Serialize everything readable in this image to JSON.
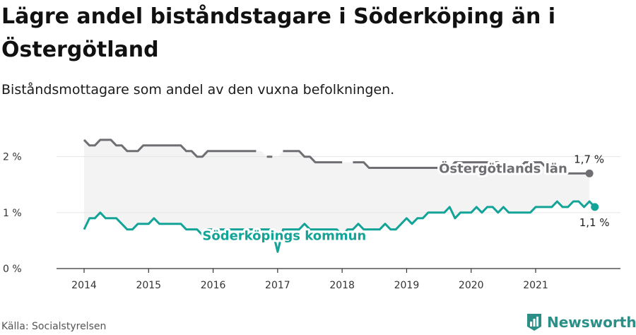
{
  "title": "Lägre andel biståndstagare i Söderköping än i Östergötland",
  "subtitle": "Biståndsmottagare som andel av den vuxna befolkningen.",
  "source": "Källa: Socialstyrelsen",
  "brand": {
    "name": "Newsworthy",
    "color": "#2b8f88"
  },
  "colors": {
    "county": "#6e6e73",
    "municipality": "#14a397",
    "band": "#f3f3f4",
    "axis": "#333333",
    "grid": "#e5e5e5"
  },
  "chart_data": {
    "type": "line",
    "ylim": [
      0,
      2.4
    ],
    "xlim": [
      2014,
      2021.92
    ],
    "y_ticks": [
      {
        "value": 0,
        "label": "0 %"
      },
      {
        "value": 1,
        "label": "1 %"
      },
      {
        "value": 2,
        "label": "2 %"
      }
    ],
    "x_ticks": [
      {
        "value": 2014,
        "label": "2014"
      },
      {
        "value": 2015,
        "label": "2015"
      },
      {
        "value": 2016,
        "label": "2016"
      },
      {
        "value": 2017,
        "label": "2017"
      },
      {
        "value": 2018,
        "label": "2018"
      },
      {
        "value": 2019,
        "label": "2019"
      },
      {
        "value": 2020,
        "label": "2020"
      },
      {
        "value": 2021,
        "label": "2021"
      }
    ],
    "start": "2014-01",
    "series": [
      {
        "key": "county",
        "name": "Östergötlands län",
        "end_label": "1,7 %",
        "values": [
          2.3,
          2.2,
          2.2,
          2.3,
          2.3,
          2.3,
          2.2,
          2.2,
          2.1,
          2.1,
          2.1,
          2.2,
          2.2,
          2.2,
          2.2,
          2.2,
          2.2,
          2.2,
          2.2,
          2.1,
          2.1,
          2.0,
          2.0,
          2.1,
          2.1,
          2.1,
          2.1,
          2.1,
          2.1,
          2.1,
          2.1,
          2.1,
          2.1,
          null,
          2.0,
          2.0,
          null,
          2.1,
          2.1,
          2.1,
          2.1,
          2.0,
          2.0,
          1.9,
          1.9,
          1.9,
          1.9,
          1.9,
          1.9,
          null,
          1.9,
          1.9,
          1.9,
          1.8,
          1.8,
          1.8,
          1.8,
          1.8,
          1.8,
          1.8,
          1.8,
          1.8,
          1.8,
          1.8,
          1.8,
          1.8,
          1.8,
          1.8,
          1.8,
          1.9,
          1.9,
          1.9,
          1.9,
          1.9,
          1.9,
          1.9,
          1.9,
          1.9,
          1.8,
          1.8,
          1.8,
          1.8,
          1.9,
          1.9,
          1.9,
          1.9,
          1.8,
          1.8,
          1.8,
          1.8,
          1.7,
          1.7,
          1.7,
          1.7,
          1.7
        ]
      },
      {
        "key": "municipality",
        "name": "Söderköpings kommun",
        "end_label": "1,1 %",
        "values": [
          0.7,
          0.9,
          0.9,
          1.0,
          0.9,
          0.9,
          0.9,
          0.8,
          0.7,
          0.7,
          0.8,
          0.8,
          0.8,
          0.9,
          0.8,
          0.8,
          0.8,
          0.8,
          0.8,
          0.7,
          0.7,
          0.7,
          0.6,
          0.7,
          0.7,
          0.7,
          0.7,
          0.7,
          0.7,
          0.7,
          0.7,
          0.7,
          0.7,
          0.7,
          0.7,
          0.7,
          0.3,
          0.7,
          0.7,
          0.7,
          0.7,
          0.8,
          0.7,
          0.7,
          0.7,
          0.7,
          0.7,
          0.7,
          0.6,
          0.7,
          0.7,
          0.8,
          0.7,
          0.7,
          0.7,
          0.7,
          0.8,
          0.7,
          0.7,
          0.8,
          0.9,
          0.8,
          0.9,
          0.9,
          1.0,
          1.0,
          1.0,
          1.0,
          1.1,
          0.9,
          1.0,
          1.0,
          1.0,
          1.1,
          1.0,
          1.1,
          1.1,
          1.0,
          1.1,
          1.0,
          1.0,
          1.0,
          1.0,
          1.0,
          1.1,
          1.1,
          1.1,
          1.1,
          1.2,
          1.1,
          1.1,
          1.2,
          1.2,
          1.1,
          1.2,
          1.1
        ]
      }
    ],
    "series_labels": [
      {
        "series": "county",
        "at_month": 66
      },
      {
        "series": "municipality",
        "at_month": 22
      }
    ]
  }
}
